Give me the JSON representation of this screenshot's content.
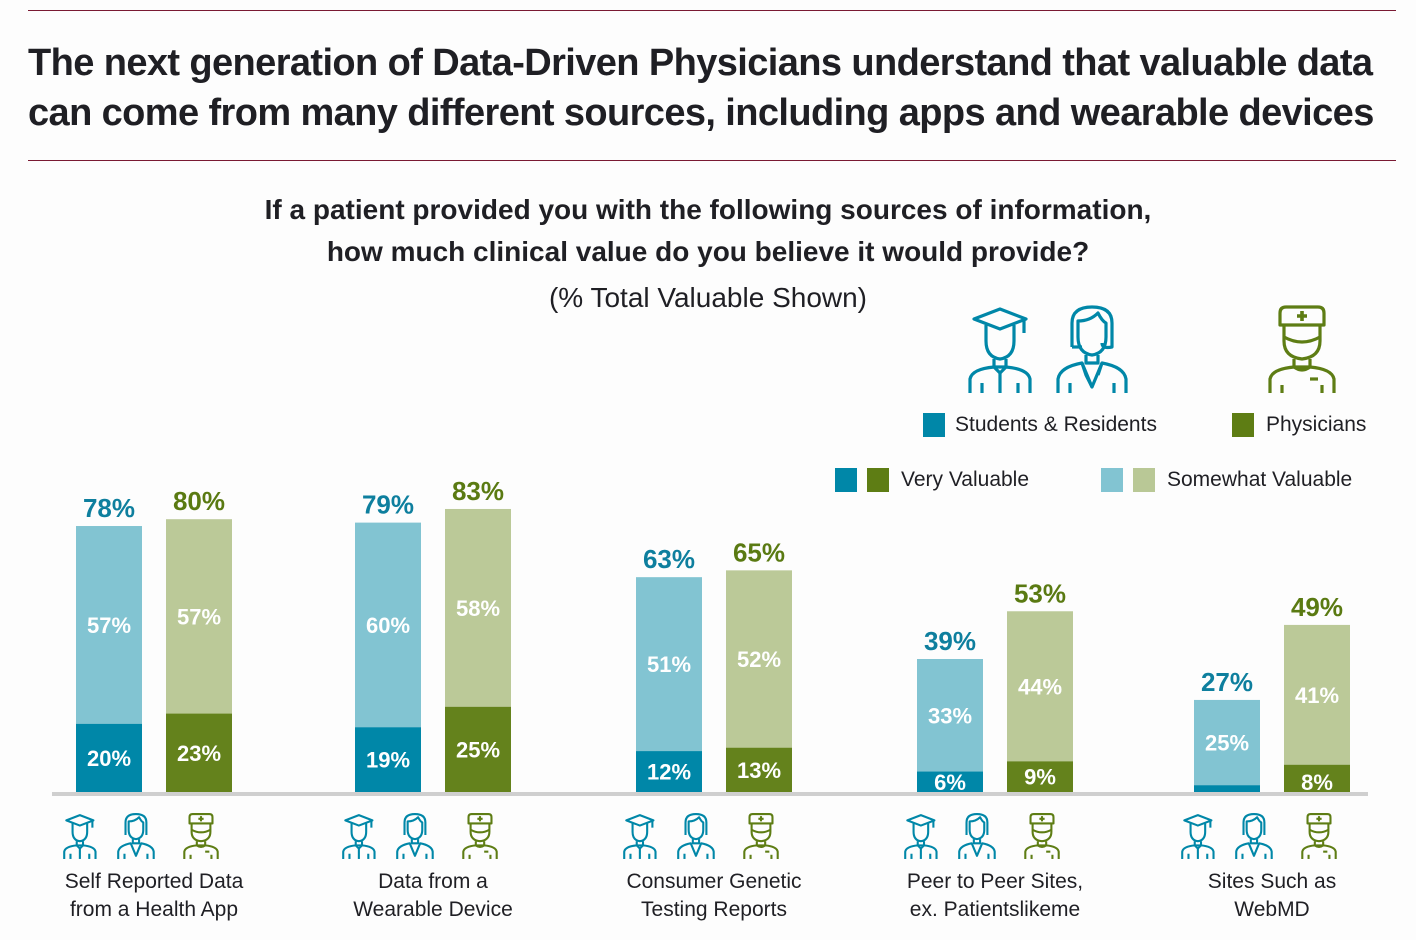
{
  "header": {
    "title_line1": "The next generation of Data-Driven Physicians understand that valuable data",
    "title_line2": "can come from many different sources, including apps and wearable devices"
  },
  "question": {
    "line1": "If a patient provided you with the following sources of information,",
    "line2": "how much clinical value do you believe it would provide?",
    "line3": "(% Total Valuable Shown)"
  },
  "legend": {
    "groups": [
      {
        "label": "Students & Residents",
        "color": "#0087a8",
        "icon": "student-resident-icon"
      },
      {
        "label": "Physicians",
        "color": "#5e7d14",
        "icon": "physician-icon"
      }
    ],
    "levels": [
      {
        "label": "Very Valuable",
        "colors": [
          "#0087a8",
          "#5e7d14"
        ]
      },
      {
        "label": "Somewhat Valuable",
        "colors": [
          "#82c4d2",
          "#b9c896"
        ]
      }
    ]
  },
  "colors": {
    "students_very": "#0087a8",
    "students_somewhat": "#82c4d2",
    "physicians_very": "#64821c",
    "physicians_somewhat": "#bbc998",
    "students_total_text": "#0e7f9e",
    "physicians_total_text": "#5a7a12",
    "baseline": "#cfcfcf",
    "rule": "#7a1a33"
  },
  "chart_data": {
    "type": "bar",
    "stacked": true,
    "title": "If a patient provided you with the following sources of information, how much clinical value do you believe it would provide?",
    "subtitle": "(% Total Valuable Shown)",
    "categories": [
      "Self Reported Data from a Health App",
      "Data from a Wearable Device",
      "Consumer Genetic Testing Reports",
      "Peer to Peer Sites, ex. Patientslikeme",
      "Sites Such as WebMD"
    ],
    "category_lines": [
      [
        "Self Reported Data",
        "from a Health App"
      ],
      [
        "Data from a",
        "Wearable Device"
      ],
      [
        "Consumer Genetic",
        "Testing Reports"
      ],
      [
        "Peer to Peer Sites,",
        "ex. Patientslikeme"
      ],
      [
        "Sites Such as",
        "WebMD"
      ]
    ],
    "series": [
      {
        "name": "Students & Residents",
        "very_valuable": [
          20,
          19,
          12,
          6,
          2
        ],
        "very_valuable_labels": [
          "20%",
          "19%",
          "12%",
          "6%",
          ""
        ],
        "somewhat_valuable": [
          57,
          60,
          51,
          33,
          25
        ],
        "total": [
          78,
          79,
          63,
          39,
          27
        ]
      },
      {
        "name": "Physicians",
        "very_valuable": [
          23,
          25,
          13,
          9,
          8
        ],
        "very_valuable_labels": [
          "23%",
          "25%",
          "13%",
          "9%",
          "8%"
        ],
        "somewhat_valuable": [
          57,
          58,
          52,
          44,
          41
        ],
        "total": [
          80,
          83,
          65,
          53,
          49
        ]
      }
    ],
    "unit": "%",
    "ylim": [
      0,
      100
    ],
    "grid": false,
    "legend_position": "top-right",
    "xlabel": "",
    "ylabel": ""
  }
}
